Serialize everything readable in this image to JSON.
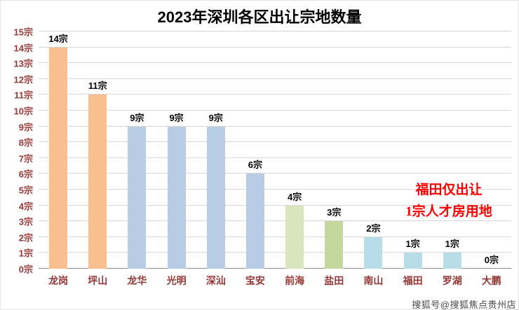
{
  "title": "2023年深圳各区出让宗地数量",
  "annotation": {
    "line1": "福田仅出让",
    "line2": "1宗人才房用地",
    "color": "#FE0000"
  },
  "watermark": "搜狐号@搜狐焦点贵州店",
  "chart_data": {
    "type": "bar",
    "title": "2023年深圳各区出让宗地数量",
    "categories": [
      "龙岗",
      "坪山",
      "龙华",
      "光明",
      "深汕",
      "宝安",
      "前海",
      "盐田",
      "南山",
      "福田",
      "罗湖",
      "大鹏"
    ],
    "values": [
      14,
      11,
      9,
      9,
      9,
      6,
      4,
      3,
      2,
      1,
      1,
      0
    ],
    "value_labels": [
      "14宗",
      "11宗",
      "9宗",
      "9宗",
      "9宗",
      "6宗",
      "4宗",
      "3宗",
      "2宗",
      "1宗",
      "1宗",
      "0宗"
    ],
    "bar_colors": [
      "#FABF8F",
      "#FABF8F",
      "#B8CCE4",
      "#B8CCE4",
      "#B8CCE4",
      "#B8CCE4",
      "#D7E4BC",
      "#C3D69B",
      "#B7DEE8",
      "#B7DEE8",
      "#B7DEE8",
      "#B7DEE8"
    ],
    "xlabel": "",
    "ylabel": "",
    "ylim": [
      0,
      15
    ],
    "ytick_step": 1,
    "ytick_suffix": "宗",
    "grid": true,
    "legend": "none",
    "axis_label_color": "#953735",
    "gridline_color": "#D9D9D9",
    "axis_line_color": "#8C8C8C"
  }
}
